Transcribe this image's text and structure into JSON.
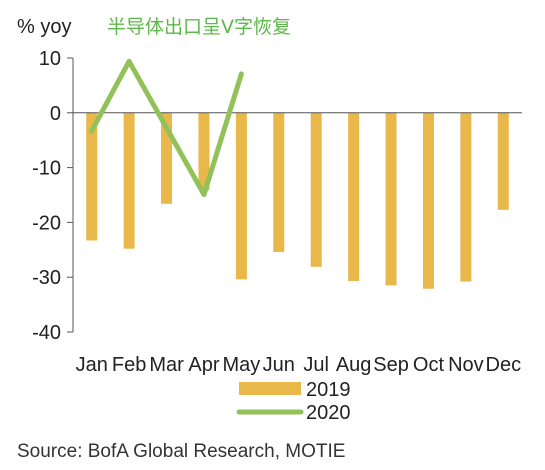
{
  "chart_data": {
    "type": "bar",
    "ylabel": "% yoy",
    "annotation": "半导体出口呈V字恢复",
    "categories": [
      "Jan",
      "Feb",
      "Mar",
      "Apr",
      "May",
      "Jun",
      "Jul",
      "Aug",
      "Sep",
      "Oct",
      "Nov",
      "Dec"
    ],
    "ylim": [
      -40,
      10
    ],
    "yticks": [
      10,
      0,
      -10,
      -20,
      -30,
      -40
    ],
    "grid": false,
    "legend_position": "bottom",
    "series": [
      {
        "name": "2019",
        "type": "bar",
        "color": "#E8B84A",
        "values": [
          -23.3,
          -24.8,
          -16.6,
          -14.1,
          -30.4,
          -25.4,
          -28.1,
          -30.7,
          -31.5,
          -32.1,
          -30.8,
          -17.7
        ]
      },
      {
        "name": "2020",
        "type": "line",
        "color": "#92C15A",
        "values": [
          -3.3,
          9.4,
          null,
          -14.9,
          7.1,
          null,
          null,
          null,
          null,
          null,
          null,
          null
        ]
      }
    ]
  },
  "source": "Source: BofA Global Research, MOTIE",
  "colors": {
    "annotation": "#5DB84A",
    "axis": "#555555"
  }
}
